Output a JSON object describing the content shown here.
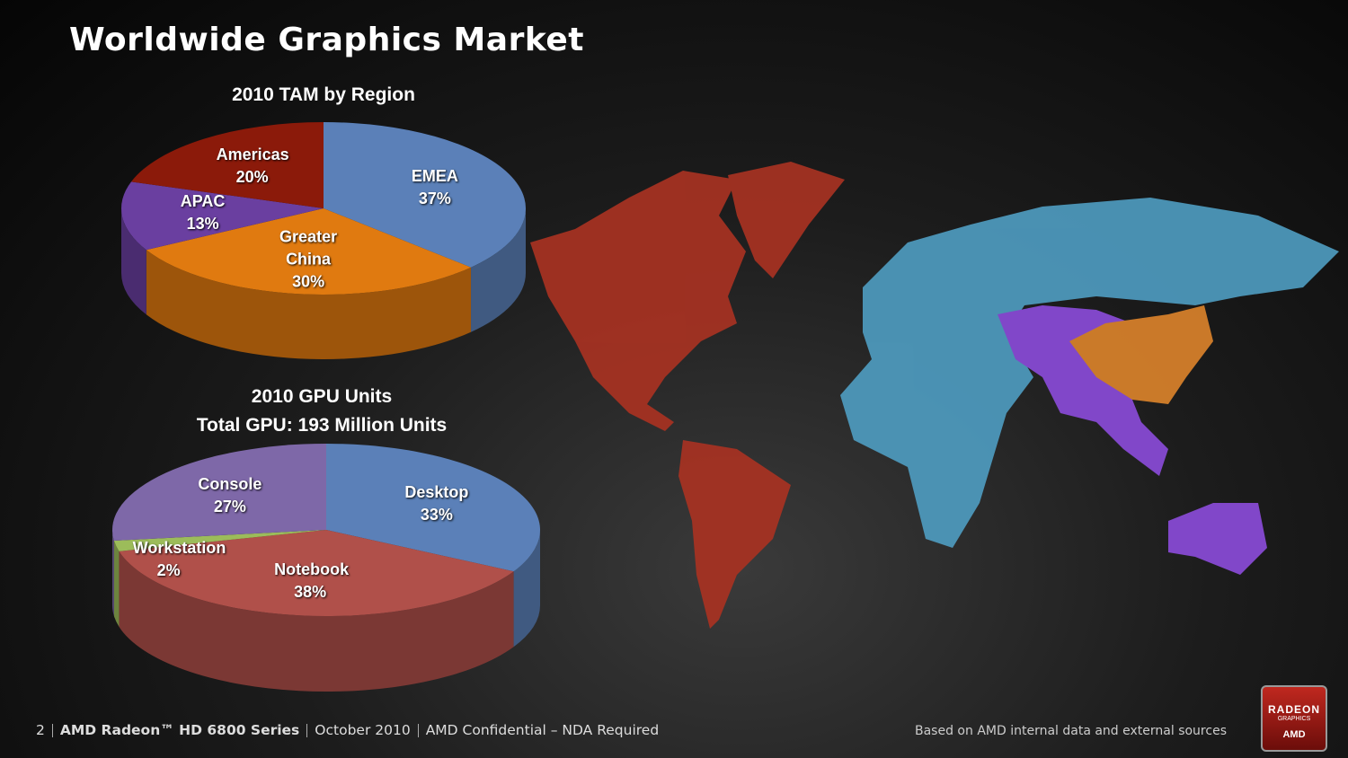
{
  "slide": {
    "title": "Worldwide Graphics Market",
    "footer": [
      "2",
      "AMD Radeon™ HD 6800 Series",
      "October 2010",
      "AMD Confidential – NDA Required"
    ],
    "note": "Based on AMD internal data and external sources",
    "logo": [
      "RADEON",
      "GRAPHICS",
      "AMD"
    ]
  },
  "chart_data": [
    {
      "type": "pie",
      "title": "2010 TAM by Region",
      "categories": [
        "EMEA",
        "Greater China",
        "APAC",
        "Americas"
      ],
      "values": [
        37,
        30,
        13,
        20
      ],
      "value_labels": [
        "37%",
        "30%",
        "13%",
        "20%"
      ],
      "colors": [
        "#5b80b8",
        "#e07a10",
        "#6a3fa0",
        "#8b1a0a"
      ]
    },
    {
      "type": "pie",
      "title": "2010 GPU Units",
      "subtitle": "Total GPU: 193 Million Units",
      "categories": [
        "Desktop",
        "Notebook",
        "Workstation",
        "Console"
      ],
      "values": [
        33,
        38,
        2,
        27
      ],
      "value_labels": [
        "33%",
        "38%",
        "2%",
        "27%"
      ],
      "colors": [
        "#5b80b8",
        "#b0504a",
        "#9cbc5a",
        "#7e68a8"
      ]
    }
  ]
}
